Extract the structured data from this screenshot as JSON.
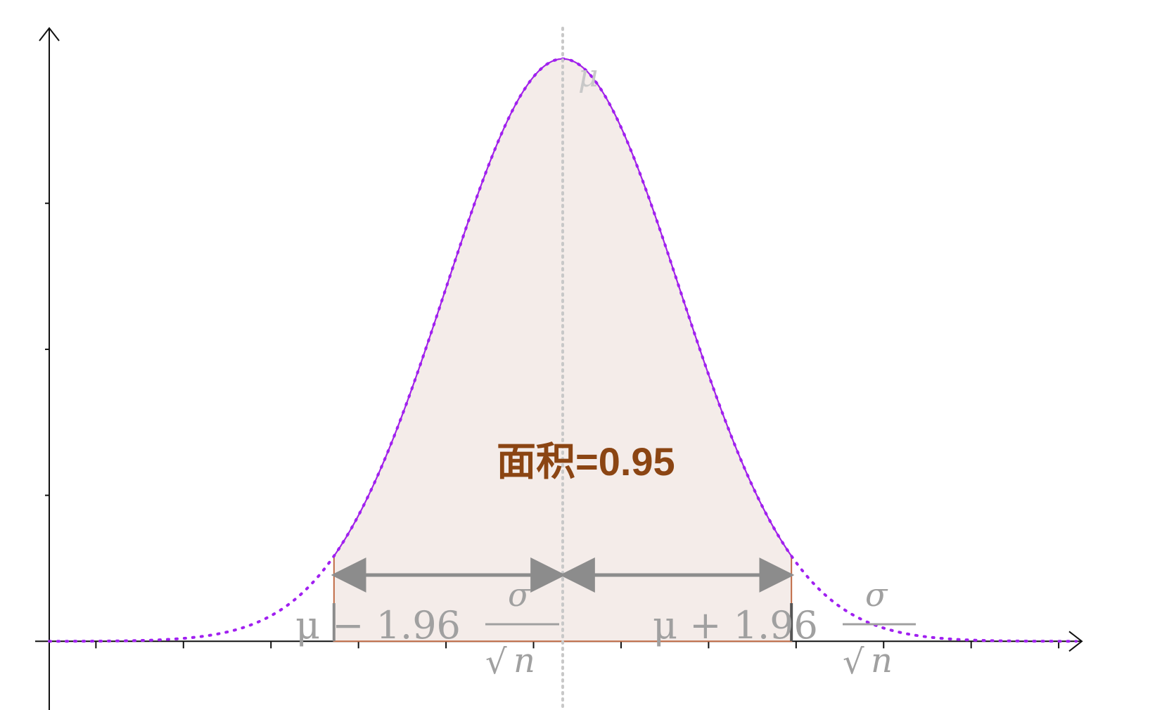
{
  "chart_data": {
    "type": "area",
    "x_axis": {
      "range": [
        -4.4,
        4.4
      ],
      "tick_values": [
        -4.0,
        -3.25,
        -2.5,
        -1.75,
        -1.0,
        -0.25,
        0.5,
        1.25,
        2.0,
        2.75,
        3.5,
        4.25
      ]
    },
    "y_axis": {
      "range": [
        -0.035,
        0.42
      ],
      "tick_values": [
        0.1,
        0.2,
        0.3
      ]
    },
    "curve": {
      "distribution": "normal",
      "mean": 0,
      "sd": 1,
      "style": "dotted",
      "color": "#a020f0"
    },
    "shaded_region": {
      "from": -1.96,
      "to": 1.96,
      "fill": "#f4ece9",
      "outline": "#c06a45",
      "area_label": "面积=0.95"
    },
    "mean_line": {
      "value": 0,
      "label": "μ",
      "color": "#c8c8c8"
    },
    "interval_labels": {
      "left": {
        "prefix": "μ − 1.96",
        "numerator": "σ",
        "radicand": "n",
        "radical": "√"
      },
      "right": {
        "prefix": "μ + 1.96",
        "numerator": "σ",
        "radicand": "n",
        "radical": "√"
      }
    },
    "grid": false,
    "colors": {
      "axis": "#111111",
      "dimension": "#8c8c8c",
      "label": "#8b4513",
      "math_text": "#a0a0a0"
    }
  }
}
